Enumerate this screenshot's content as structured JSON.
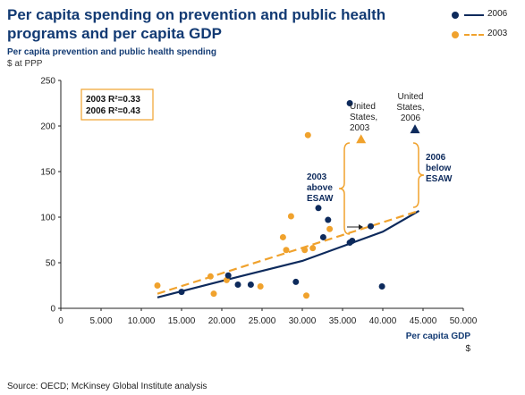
{
  "title": "Per capita spending on prevention and public health programs and per capita GDP",
  "legend": [
    {
      "label": "2006",
      "color": "#0d2a5c"
    },
    {
      "label": "2003",
      "color": "#f0a22d"
    }
  ],
  "source": "Source: OECD; McKinsey Global Institute analysis",
  "chart_data": {
    "type": "scatter",
    "ylabel": "Per capita prevention and public health spending",
    "ylabel_unit": "$ at PPP",
    "xlabel": "Per capita GDP",
    "xlabel_unit": "$",
    "xlim": [
      0,
      50000
    ],
    "ylim": [
      0,
      250
    ],
    "x_ticks": [
      0,
      5000,
      10000,
      15000,
      20000,
      25000,
      30000,
      35000,
      40000,
      45000,
      50000
    ],
    "x_tick_labels": [
      "0",
      "5.000",
      "10.000",
      "15.000",
      "20.000",
      "25.000",
      "30.000",
      "35.000",
      "40.000",
      "45.000",
      "50.000"
    ],
    "y_ticks": [
      0,
      50,
      100,
      150,
      200,
      250
    ],
    "y_tick_labels": [
      "0",
      "50",
      "100",
      "150",
      "200",
      "250"
    ],
    "grid": false,
    "series": [
      {
        "name": "2006",
        "color": "#0d2a5c",
        "points": [
          [
            15000,
            18
          ],
          [
            20800,
            36
          ],
          [
            22000,
            26
          ],
          [
            23600,
            26
          ],
          [
            29200,
            29
          ],
          [
            32000,
            110
          ],
          [
            32600,
            78
          ],
          [
            33200,
            97
          ],
          [
            35900,
            72
          ],
          [
            36200,
            74
          ],
          [
            38500,
            90
          ],
          [
            39900,
            24
          ],
          [
            35900,
            225
          ]
        ],
        "highlight": {
          "x": 44000,
          "y": 196,
          "label_lines": [
            "United",
            "States,",
            "2006"
          ]
        },
        "trend": [
          [
            12000,
            12
          ],
          [
            20000,
            30
          ],
          [
            30000,
            52
          ],
          [
            40000,
            84
          ],
          [
            44500,
            107
          ]
        ]
      },
      {
        "name": "2003",
        "color": "#f0a22d",
        "points": [
          [
            12000,
            25
          ],
          [
            18600,
            35
          ],
          [
            19000,
            16
          ],
          [
            20600,
            31
          ],
          [
            24800,
            24
          ],
          [
            27600,
            78
          ],
          [
            28000,
            64
          ],
          [
            28600,
            101
          ],
          [
            30300,
            64
          ],
          [
            30500,
            14
          ],
          [
            30700,
            190
          ],
          [
            31300,
            66
          ],
          [
            33400,
            87
          ]
        ],
        "highlight": {
          "x": 37300,
          "y": 185,
          "label_lines": [
            "United",
            "States,",
            "2003"
          ]
        },
        "trend": [
          [
            12000,
            16
          ],
          [
            44500,
            107
          ]
        ]
      }
    ],
    "r2_box": [
      "2003 R²=0.33",
      "2006 R²=0.43"
    ],
    "annotations": [
      {
        "lines": [
          "2003",
          "above",
          "ESAW"
        ],
        "color": "#0d2a5c"
      },
      {
        "lines": [
          "2006",
          "below",
          "ESAW"
        ],
        "color": "#0d2a5c"
      }
    ]
  }
}
